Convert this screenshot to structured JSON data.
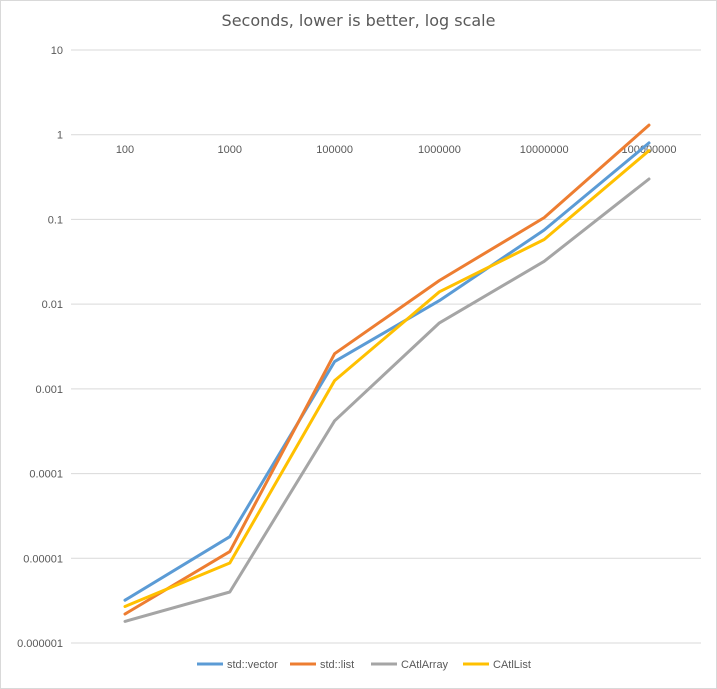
{
  "chart_data": {
    "type": "line",
    "title": "Seconds, lower is better, log scale",
    "xlabel": "",
    "ylabel": "",
    "y_scale": "log",
    "ylim": [
      1e-06,
      10
    ],
    "grid": true,
    "legend_position": "bottom",
    "categories": [
      "100",
      "1000",
      "100000",
      "1000000",
      "10000000",
      "100000000"
    ],
    "y_tick_labels": [
      "10",
      "1",
      "0.1",
      "0.01",
      "0.001",
      "0.0001",
      "0.00001",
      "0.000001"
    ],
    "series": [
      {
        "name": "std::vector",
        "color": "#5B9BD5",
        "values": [
          3.2e-06,
          1.8e-05,
          0.0021,
          0.011,
          0.075,
          0.8
        ]
      },
      {
        "name": "std::list",
        "color": "#ED7D31",
        "values": [
          2.2e-06,
          1.2e-05,
          0.0026,
          0.019,
          0.105,
          1.3
        ]
      },
      {
        "name": "CAtlArray",
        "color": "#A5A5A5",
        "values": [
          1.8e-06,
          4e-06,
          0.00042,
          0.006,
          0.032,
          0.3
        ]
      },
      {
        "name": "CAtlList",
        "color": "#FFC000",
        "values": [
          2.7e-06,
          8.8e-06,
          0.00125,
          0.014,
          0.058,
          0.65
        ]
      }
    ]
  }
}
